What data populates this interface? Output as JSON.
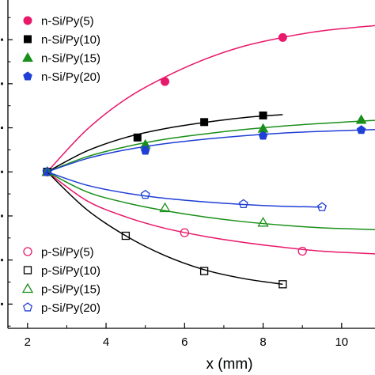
{
  "chart_data": {
    "type": "scatter",
    "title": "",
    "xlabel": "x (mm)",
    "ylabel": "",
    "xlim": [
      1.5,
      10.85
    ],
    "ylim": [
      -3.55,
      3.9
    ],
    "x_ticks": [
      2,
      4,
      6,
      8,
      10
    ],
    "x_tick_labels": [
      "2",
      "4",
      "6",
      "8",
      "10"
    ],
    "y_ticks": [
      -3,
      -2,
      -1,
      0,
      1,
      2,
      3
    ],
    "grid": false,
    "legend": [
      {
        "placement": "top-left",
        "series": [
          0,
          1,
          2,
          3
        ]
      },
      {
        "placement": "bottom-left",
        "series": [
          4,
          5,
          6,
          7
        ]
      }
    ],
    "series": [
      {
        "name": "n-Si/Py(5)",
        "color": "#e8186a",
        "marker": "circle",
        "filled": true,
        "points": [
          [
            2.5,
            0
          ],
          [
            5.5,
            2.05
          ],
          [
            8.5,
            3.05
          ]
        ],
        "fit": [
          [
            2.5,
            0
          ],
          [
            3.5,
            0.95
          ],
          [
            4.5,
            1.65
          ],
          [
            5.5,
            2.15
          ],
          [
            6.5,
            2.55
          ],
          [
            7.5,
            2.85
          ],
          [
            8.5,
            3.05
          ],
          [
            9.5,
            3.2
          ],
          [
            10.85,
            3.32
          ]
        ]
      },
      {
        "name": "n-Si/Py(10)",
        "color": "#000000",
        "marker": "square",
        "filled": true,
        "points": [
          [
            2.5,
            0
          ],
          [
            4.8,
            0.78
          ],
          [
            6.5,
            1.13
          ],
          [
            8.0,
            1.28
          ]
        ],
        "fit": [
          [
            2.5,
            0
          ],
          [
            3.5,
            0.47
          ],
          [
            4.5,
            0.78
          ],
          [
            5.5,
            0.98
          ],
          [
            6.5,
            1.12
          ],
          [
            7.5,
            1.23
          ],
          [
            8.5,
            1.3
          ]
        ]
      },
      {
        "name": "n-Si/Py(15)",
        "color": "#1a8f1a",
        "marker": "triangle",
        "filled": true,
        "points": [
          [
            2.5,
            0
          ],
          [
            5.0,
            0.62
          ],
          [
            8.0,
            0.98
          ],
          [
            10.5,
            1.18
          ]
        ],
        "fit": [
          [
            2.5,
            0
          ],
          [
            3.5,
            0.34
          ],
          [
            4.5,
            0.57
          ],
          [
            5.5,
            0.74
          ],
          [
            6.5,
            0.86
          ],
          [
            7.5,
            0.96
          ],
          [
            8.5,
            1.04
          ],
          [
            9.5,
            1.1
          ],
          [
            10.85,
            1.17
          ]
        ]
      },
      {
        "name": "n-Si/Py(20)",
        "color": "#1f3fd6",
        "marker": "pentagon",
        "filled": true,
        "points": [
          [
            2.5,
            0
          ],
          [
            5.0,
            0.48
          ],
          [
            8.0,
            0.82
          ],
          [
            10.5,
            0.95
          ]
        ],
        "fit": [
          [
            2.5,
            0
          ],
          [
            3.5,
            0.3
          ],
          [
            4.5,
            0.5
          ],
          [
            5.5,
            0.64
          ],
          [
            6.5,
            0.74
          ],
          [
            7.5,
            0.82
          ],
          [
            8.5,
            0.88
          ],
          [
            9.5,
            0.92
          ],
          [
            10.85,
            0.96
          ]
        ]
      },
      {
        "name": "p-Si/Py(5)",
        "color": "#e8186a",
        "marker": "circle",
        "filled": false,
        "points": [
          [
            2.5,
            0
          ],
          [
            6.0,
            -1.38
          ],
          [
            9.0,
            -1.8
          ]
        ],
        "fit": [
          [
            2.5,
            0
          ],
          [
            3.5,
            -0.65
          ],
          [
            4.5,
            -1.02
          ],
          [
            5.5,
            -1.28
          ],
          [
            6.5,
            -1.46
          ],
          [
            7.5,
            -1.6
          ],
          [
            8.5,
            -1.71
          ],
          [
            9.5,
            -1.8
          ],
          [
            10.85,
            -1.86
          ]
        ]
      },
      {
        "name": "p-Si/Py(10)",
        "color": "#000000",
        "marker": "square",
        "filled": false,
        "points": [
          [
            2.5,
            0
          ],
          [
            4.5,
            -1.45
          ],
          [
            6.5,
            -2.25
          ],
          [
            8.5,
            -2.55
          ]
        ],
        "fit": [
          [
            2.5,
            0
          ],
          [
            3.5,
            -0.85
          ],
          [
            4.5,
            -1.45
          ],
          [
            5.5,
            -1.9
          ],
          [
            6.5,
            -2.22
          ],
          [
            7.5,
            -2.42
          ],
          [
            8.5,
            -2.55
          ]
        ]
      },
      {
        "name": "p-Si/Py(15)",
        "color": "#1a8f1a",
        "marker": "triangle",
        "filled": false,
        "points": [
          [
            2.5,
            0
          ],
          [
            5.5,
            -0.82
          ],
          [
            8.0,
            -1.15
          ]
        ],
        "fit": [
          [
            2.5,
            0
          ],
          [
            3.5,
            -0.45
          ],
          [
            4.5,
            -0.7
          ],
          [
            5.5,
            -0.88
          ],
          [
            6.5,
            -1.02
          ],
          [
            7.5,
            -1.13
          ],
          [
            8.5,
            -1.21
          ],
          [
            9.5,
            -1.27
          ],
          [
            10.85,
            -1.31
          ]
        ]
      },
      {
        "name": "p-Si/Py(20)",
        "color": "#1f3fd6",
        "marker": "pentagon",
        "filled": false,
        "points": [
          [
            2.5,
            0
          ],
          [
            5.0,
            -0.52
          ],
          [
            7.5,
            -0.73
          ],
          [
            9.5,
            -0.8
          ]
        ],
        "fit": [
          [
            2.5,
            0
          ],
          [
            3.5,
            -0.3
          ],
          [
            4.5,
            -0.48
          ],
          [
            5.5,
            -0.6
          ],
          [
            6.5,
            -0.68
          ],
          [
            7.5,
            -0.74
          ],
          [
            8.5,
            -0.78
          ],
          [
            9.5,
            -0.8
          ]
        ]
      }
    ]
  }
}
